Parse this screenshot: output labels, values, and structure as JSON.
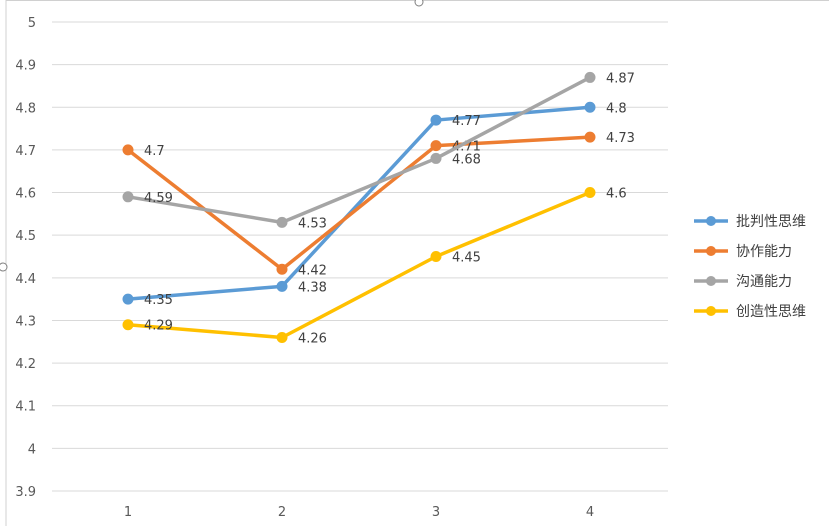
{
  "chart_data": {
    "type": "line",
    "title": "",
    "xlabel": "",
    "ylabel": "",
    "categories": [
      "1",
      "2",
      "3",
      "4"
    ],
    "ylim": [
      3.9,
      5
    ],
    "ytick_step": 0.1,
    "yticks": [
      "3.9",
      "4",
      "4.1",
      "4.2",
      "4.3",
      "4.4",
      "4.5",
      "4.6",
      "4.7",
      "4.8",
      "4.9",
      "5"
    ],
    "grid": "horizontal",
    "legend_position": "right",
    "series": [
      {
        "name": "批判性思维",
        "color": "#5B9BD5",
        "values": [
          4.35,
          4.38,
          4.77,
          4.8
        ],
        "labels": [
          "4.35",
          "4.38",
          "4.77",
          "4.8"
        ]
      },
      {
        "name": "协作能力",
        "color": "#ED7D31",
        "values": [
          4.7,
          4.42,
          4.71,
          4.73
        ],
        "labels": [
          "4.7",
          "4.42",
          "4.71",
          "4.73"
        ]
      },
      {
        "name": "沟通能力",
        "color": "#A5A5A5",
        "values": [
          4.59,
          4.53,
          4.68,
          4.87
        ],
        "labels": [
          "4.59",
          "4.53",
          "4.68",
          "4.87"
        ]
      },
      {
        "name": "创造性思维",
        "color": "#FFC000",
        "values": [
          4.29,
          4.26,
          4.45,
          4.6
        ],
        "labels": [
          "4.29",
          "4.26",
          "4.45",
          "4.6"
        ]
      }
    ]
  }
}
